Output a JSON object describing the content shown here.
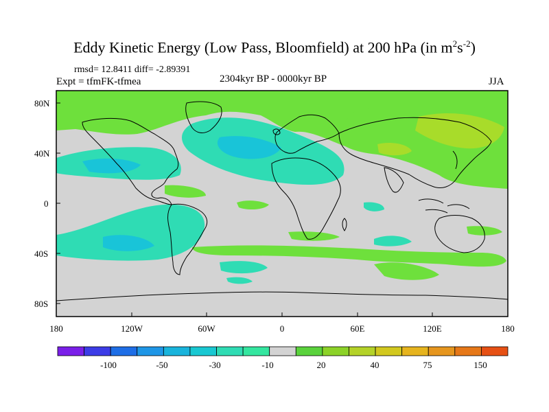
{
  "header": {
    "title_main": "Eddy Kinetic Energy (Low Pass, Bloomfield) at 200 hPa (in m",
    "title_sup1": "2",
    "title_mid": "s",
    "title_sup2": "-2",
    "title_end": ")",
    "stats": "rmsd= 12.8411 diff= -2.89391",
    "experiment": "Expt = tfmFK-tfmea",
    "period": "2304kyr BP - 0000kyr BP",
    "season": "JJA"
  },
  "map": {
    "lat_labels": [
      "80N",
      "40N",
      "0",
      "40S",
      "80S"
    ],
    "lon_labels": [
      "180",
      "120W",
      "60W",
      "0",
      "60E",
      "120E",
      "180"
    ],
    "colors": {
      "neutral": "#d3d3d3",
      "neg_light": "#2fdcb4",
      "neg_mid": "#19c4d8",
      "neg_strong": "#1ea0e6",
      "pos_light": "#6ee03c",
      "pos_mid": "#a8dc2a"
    }
  },
  "colorbar": {
    "colors": [
      "#7a1fe8",
      "#3c3ce6",
      "#1e6ee6",
      "#1e96e6",
      "#19b4dc",
      "#19c8d2",
      "#2fdcb4",
      "#34e6a0",
      "#d3d3d3",
      "#5ad23c",
      "#8cd228",
      "#b4d228",
      "#d2c81e",
      "#e6b41e",
      "#e6961e",
      "#e67818",
      "#e65014"
    ],
    "labels": [
      "-100",
      "-50",
      "-30",
      "-10",
      "20",
      "40",
      "75",
      "150"
    ]
  }
}
